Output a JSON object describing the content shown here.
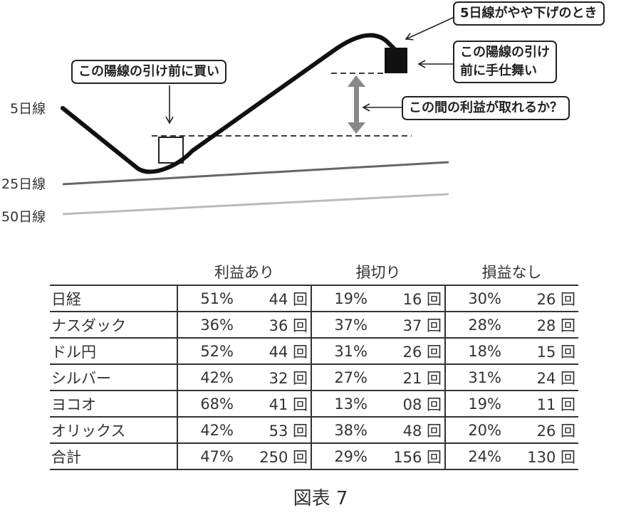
{
  "diagram": {
    "line_labels": [
      "5日線",
      "25日線",
      "50日線"
    ],
    "callouts": {
      "buy": "この陽線の引け前に買い",
      "ma_down": "5日線がやや下げのとき",
      "exit_line1": "この陽線の引け",
      "exit_line2": "前に手仕舞い",
      "profit": "この間の利益が取れるか？"
    },
    "colors": {
      "ma5": "#111111",
      "ma25": "#666666",
      "ma50": "#bbbbbb",
      "range_arrow": "#888888"
    }
  },
  "table": {
    "headers": [
      "",
      "利益あり",
      "損切り",
      "損益なし"
    ],
    "rows": [
      {
        "name": "日経",
        "cells": [
          "51%",
          "44 回",
          "19%",
          "16 回",
          "30%",
          "26 回"
        ]
      },
      {
        "name": "ナスダック",
        "cells": [
          "36%",
          "36 回",
          "37%",
          "37 回",
          "28%",
          "28 回"
        ]
      },
      {
        "name": "ドル円",
        "cells": [
          "52%",
          "44 回",
          "31%",
          "26 回",
          "18%",
          "15 回"
        ]
      },
      {
        "name": "シルバー",
        "cells": [
          "42%",
          "32 回",
          "27%",
          "21 回",
          "31%",
          "24 回"
        ]
      },
      {
        "name": "ヨコオ",
        "cells": [
          "68%",
          "41 回",
          "13%",
          "08 回",
          "19%",
          "11 回"
        ]
      },
      {
        "name": "オリックス",
        "cells": [
          "42%",
          "53 回",
          "38%",
          "48 回",
          "20%",
          "26 回"
        ]
      },
      {
        "name": "合計",
        "cells": [
          "47%",
          "250 回",
          "29%",
          "156 回",
          "24%",
          "130 回"
        ]
      }
    ]
  },
  "caption": "図表 7"
}
